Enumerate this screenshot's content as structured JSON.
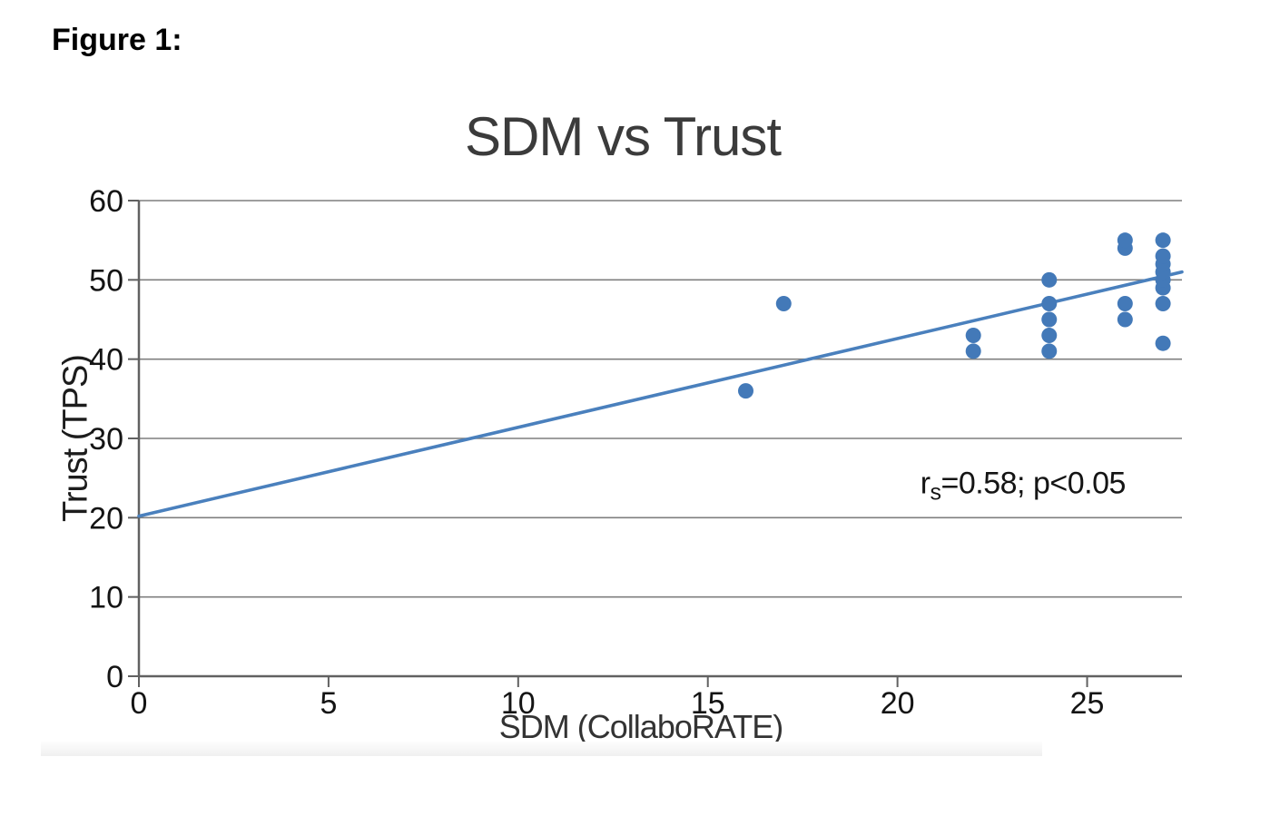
{
  "figure_label": "Figure 1:",
  "chart_data": {
    "type": "scatter",
    "title": "SDM vs Trust",
    "xlabel": "SDM (CollaboRATE)",
    "ylabel": "Trust (TPS)",
    "xlim": [
      0,
      27.5
    ],
    "ylim": [
      0,
      60
    ],
    "xticks": [
      0,
      5,
      10,
      15,
      20,
      25
    ],
    "yticks": [
      0,
      10,
      20,
      30,
      40,
      50,
      60
    ],
    "grid": "horizontal-only",
    "legend": "none",
    "points": [
      {
        "x": 16,
        "y": 36
      },
      {
        "x": 17,
        "y": 47
      },
      {
        "x": 22,
        "y": 41
      },
      {
        "x": 22,
        "y": 43
      },
      {
        "x": 24,
        "y": 41
      },
      {
        "x": 24,
        "y": 43
      },
      {
        "x": 24,
        "y": 45
      },
      {
        "x": 24,
        "y": 47
      },
      {
        "x": 24,
        "y": 50
      },
      {
        "x": 26,
        "y": 45
      },
      {
        "x": 26,
        "y": 47
      },
      {
        "x": 26,
        "y": 54
      },
      {
        "x": 26,
        "y": 55
      },
      {
        "x": 27,
        "y": 42
      },
      {
        "x": 27,
        "y": 47
      },
      {
        "x": 27,
        "y": 49
      },
      {
        "x": 27,
        "y": 50
      },
      {
        "x": 27,
        "y": 51
      },
      {
        "x": 27,
        "y": 52
      },
      {
        "x": 27,
        "y": 53
      },
      {
        "x": 27,
        "y": 55
      }
    ],
    "trendline": {
      "x1": 0,
      "y1": 20.2,
      "x2": 27.5,
      "y2": 51.0
    },
    "annotation": {
      "base": "r",
      "sub": "s",
      "rest": "=0.58; p<0.05",
      "x": 20.6,
      "y": 23.1
    },
    "colors": {
      "point": "#4379b8",
      "trend": "#4a80bd",
      "grid": "#7f7f7f",
      "axis": "#616161",
      "title": "#3b3b3b",
      "tick_text": "#141414",
      "axis_label": "#1c1c1c",
      "annotation": "#141414"
    }
  }
}
